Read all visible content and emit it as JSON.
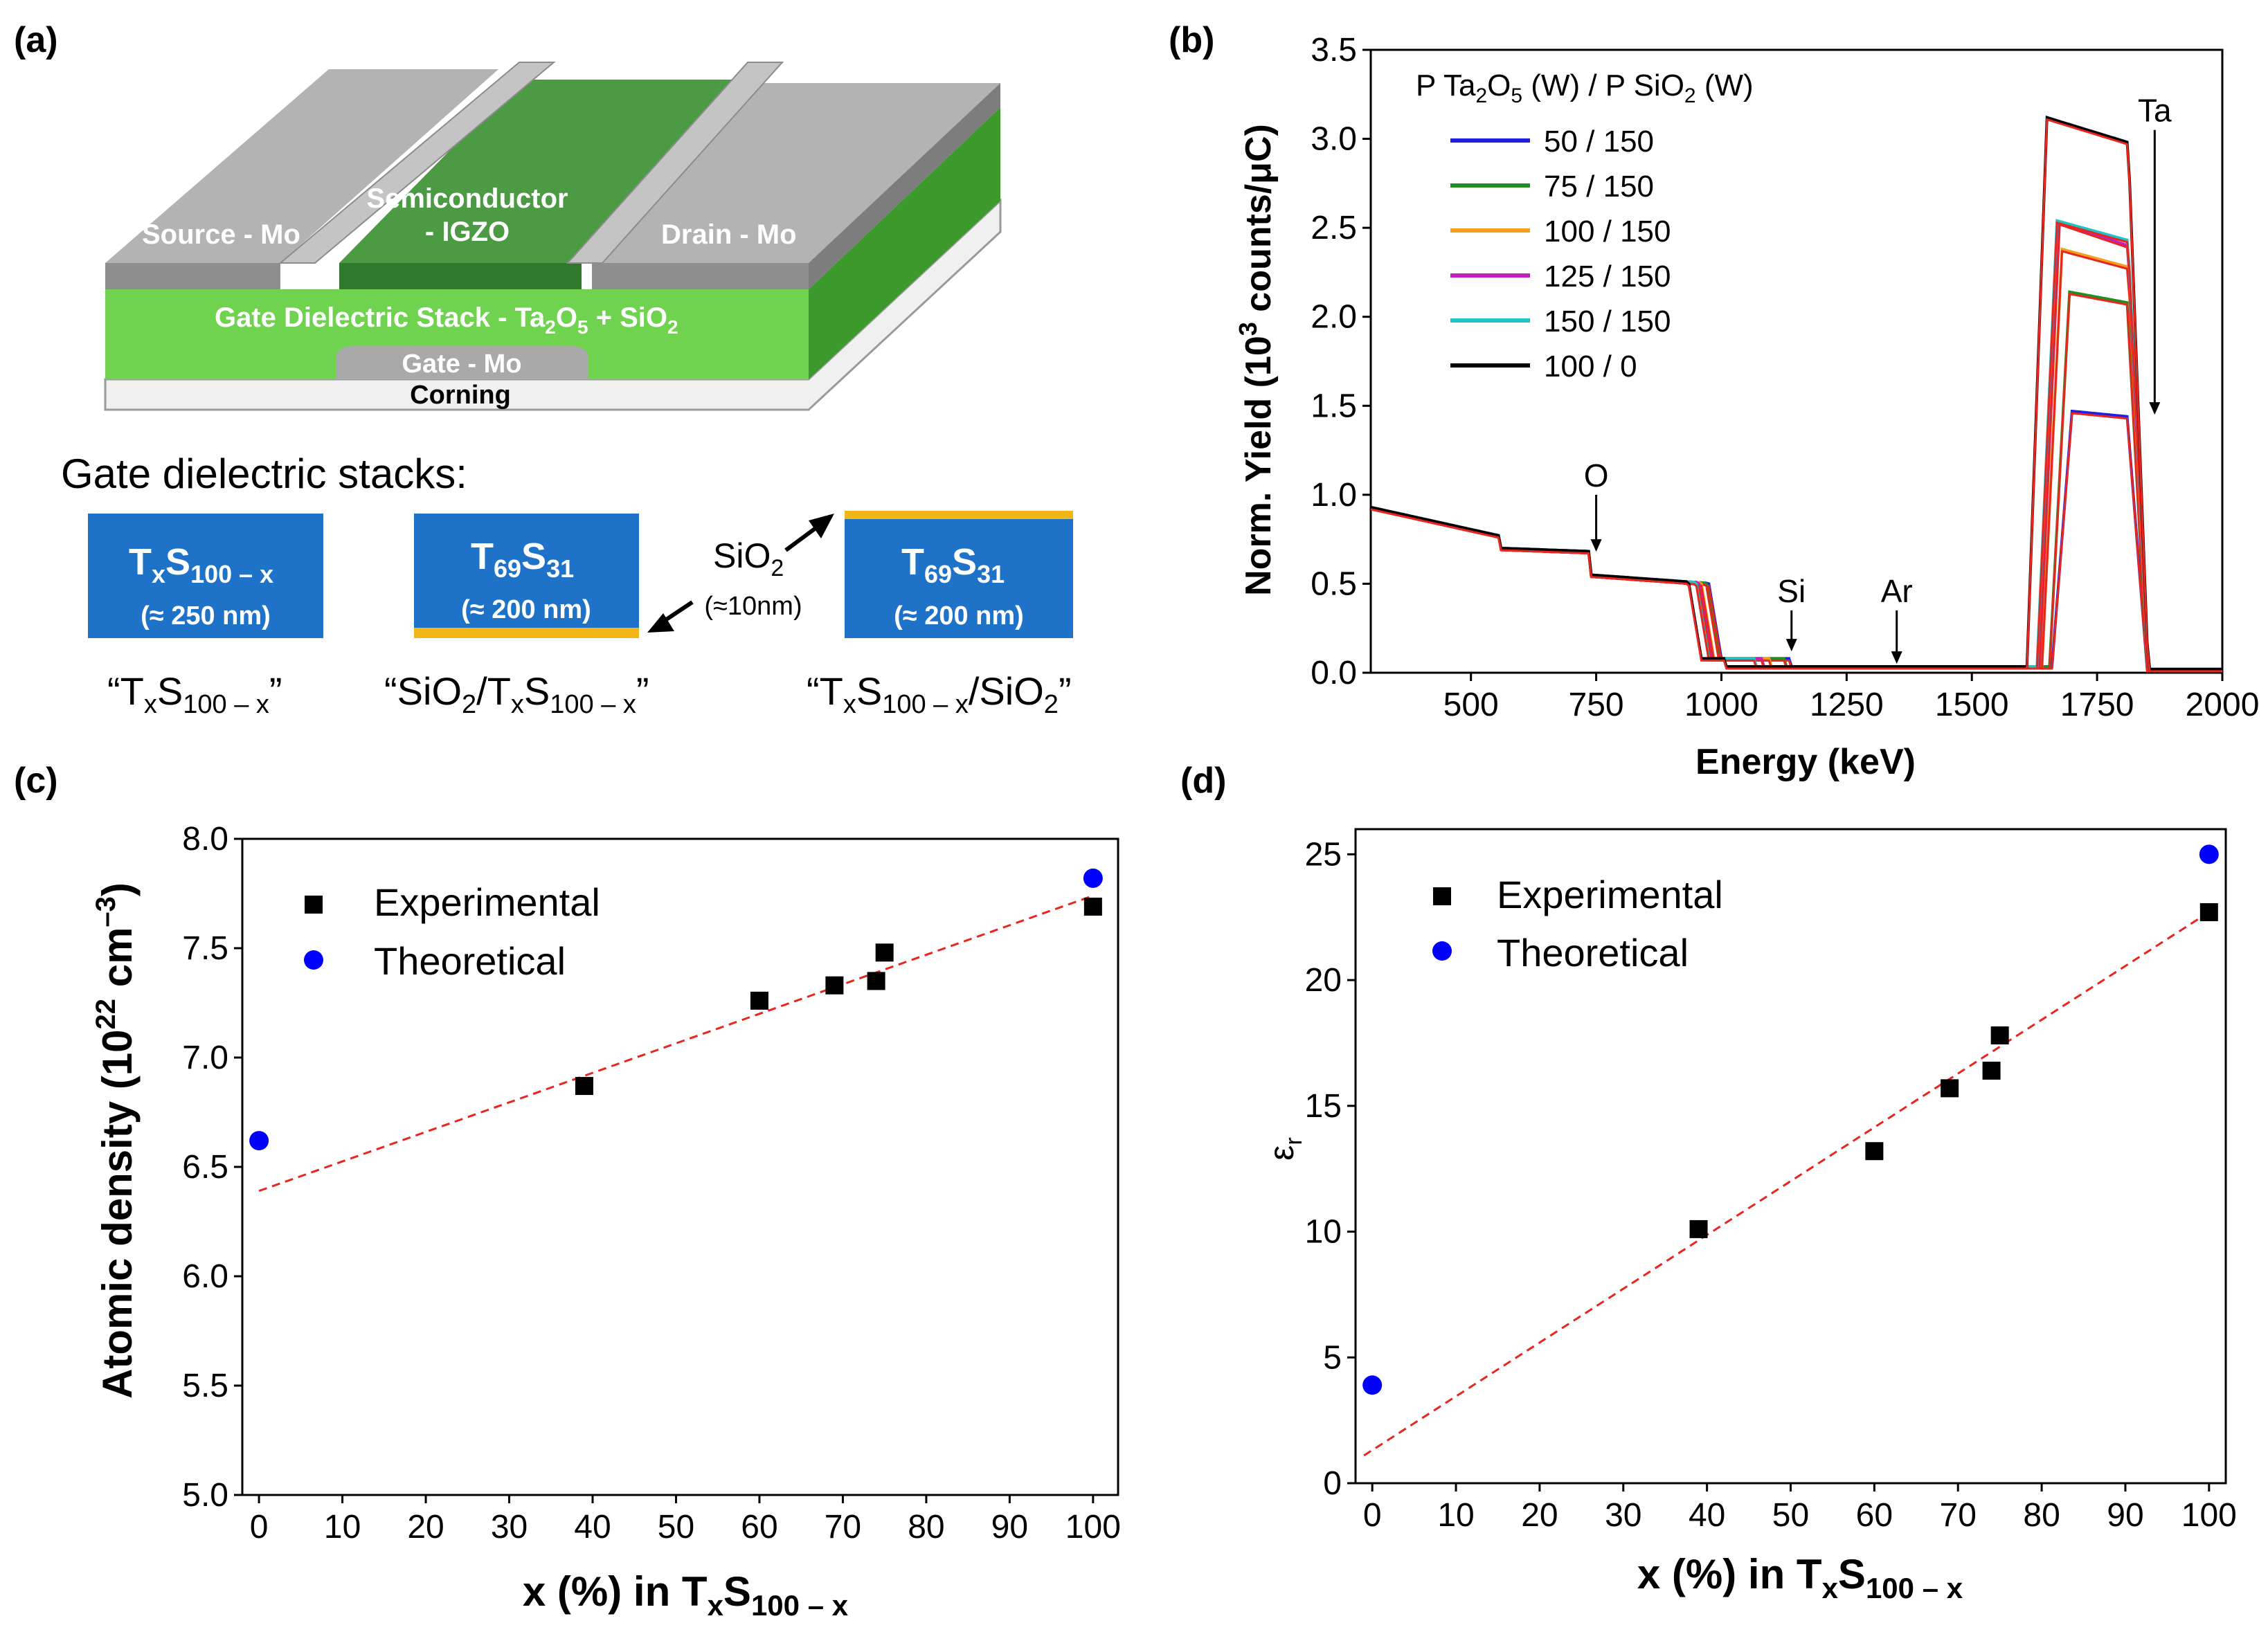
{
  "panel_labels": {
    "a": "(a)",
    "b": "(b)",
    "c": "(c)",
    "d": "(d)"
  },
  "colors": {
    "device_green": "#6fd34f",
    "device_dark_green": "#3c9a2d",
    "metal_gray": "#b3b3b3",
    "stack_blue": "#1e73c8",
    "sio2_yellow": "#f2b619",
    "exp_marker": "#000000",
    "theo_marker": "#0000ff",
    "fit_line": "#e8261f"
  },
  "panel_a": {
    "device": {
      "source": "Source - Mo",
      "semiconductor_line1": "Semiconductor",
      "semiconductor_line2": "- IGZO",
      "drain": "Drain - Mo",
      "dielectric": "Gate Dielectric Stack - Ta",
      "dielectric_sub1": "2",
      "dielectric_mid": "O",
      "dielectric_sub2": "5",
      "dielectric_tail": " + SiO",
      "dielectric_sub3": "2",
      "gate": "Gate - Mo",
      "substrate": "Corning"
    },
    "stacks_title": "Gate dielectric stacks:",
    "sio2_label": "SiO",
    "sio2_sub": "2",
    "sio2_thickness": "(≈10nm)",
    "stacks": [
      {
        "name_T": "T",
        "name_x": "x",
        "name_S": "S",
        "name_sub": "100 – x",
        "thickness": "(≈ 250 nm)",
        "caption_pre": "“",
        "caption_T": "T",
        "caption_x": "x",
        "caption_S": "S",
        "caption_sub": "100 – x",
        "caption_post": "”"
      },
      {
        "name_T": "T",
        "name_x": "69",
        "name_S": "S",
        "name_sub": "31",
        "thickness": "(≈ 200 nm)",
        "caption_pre": "“SiO",
        "caption_pre_sub": "2",
        "caption_mid": "/T",
        "caption_x": "x",
        "caption_S": "S",
        "caption_sub": "100 – x",
        "caption_post": "”"
      },
      {
        "name_T": "T",
        "name_x": "69",
        "name_S": "S",
        "name_sub": "31",
        "thickness": "(≈ 200 nm)",
        "caption_pre": "“T",
        "caption_x": "x",
        "caption_S": "S",
        "caption_sub": "100 – x",
        "caption_mid": "/SiO",
        "caption_mid_sub": "2",
        "caption_post": "”"
      }
    ]
  },
  "chart_data": [
    {
      "panel": "b",
      "type": "line",
      "xlabel": "Energy (keV)",
      "ylabel_pre": "Norm. Yield (10",
      "ylabel_sup": "3",
      "ylabel_post": " counts/μC)",
      "xlim": [
        300,
        2000
      ],
      "ylim": [
        0,
        3.5
      ],
      "xticks": [
        500,
        750,
        1000,
        1250,
        1500,
        1750,
        2000
      ],
      "yticks": [
        0.0,
        0.5,
        1.0,
        1.5,
        2.0,
        2.5,
        3.0,
        3.5
      ],
      "legend_title": "P Ta2O5 (W) / P SiO2 (W)",
      "legend_title_parts": [
        "P Ta",
        "2",
        "O",
        "5",
        " (W) / P SiO",
        "2",
        " (W)"
      ],
      "series": [
        {
          "name": "50 / 150",
          "color": "#1f1fe0",
          "o_edge": 975,
          "si_end": 1140,
          "ta_rise": 1700,
          "ta_fall": 1810,
          "plateau": [
            1.47,
            1.44
          ]
        },
        {
          "name": "75 / 150",
          "color": "#1f8f1f",
          "o_edge": 970,
          "si_end": 1130,
          "ta_rise": 1695,
          "ta_fall": 1810,
          "plateau": [
            2.14,
            2.08
          ]
        },
        {
          "name": "100 / 150",
          "color": "#f5a01a",
          "o_edge": 960,
          "si_end": 1100,
          "ta_rise": 1680,
          "ta_fall": 1812,
          "plateau": [
            2.38,
            2.28
          ]
        },
        {
          "name": "125 / 150",
          "color": "#c21fc2",
          "o_edge": 955,
          "si_end": 1085,
          "ta_rise": 1675,
          "ta_fall": 1812,
          "plateau": [
            2.53,
            2.4
          ]
        },
        {
          "name": "150 / 150",
          "color": "#1fc4c4",
          "o_edge": 950,
          "si_end": 1070,
          "ta_rise": 1670,
          "ta_fall": 1812,
          "plateau": [
            2.54,
            2.43
          ]
        },
        {
          "name": "100 / 0",
          "color": "#000000",
          "o_edge": 935,
          "si_end": 1010,
          "ta_rise": 1650,
          "ta_fall": 1812,
          "plateau": [
            3.12,
            2.98
          ]
        }
      ],
      "fit_color": "#e8261f",
      "annotations": [
        {
          "label": "O",
          "x": 750,
          "y_from": 1.0,
          "y_to": 0.68
        },
        {
          "label": "Si",
          "x": 1140,
          "y_from": 0.35,
          "y_to": 0.12
        },
        {
          "label": "Ar",
          "x": 1350,
          "y_from": 0.35,
          "y_to": 0.05
        },
        {
          "label": "Ta",
          "x": 1865,
          "y_from": 3.05,
          "y_to": 1.45
        }
      ]
    },
    {
      "panel": "c",
      "type": "scatter",
      "xlabel_pre": "x (%) in T",
      "xlabel_x": "x",
      "xlabel_S": "S",
      "xlabel_sub": "100 – x",
      "ylabel_pre": "Atomic density (10",
      "ylabel_sup1": "22",
      "ylabel_mid": " cm",
      "ylabel_sup2": "–3",
      "ylabel_post": ")",
      "xlim": [
        -2,
        103
      ],
      "ylim": [
        5.0,
        8.0
      ],
      "xticks": [
        0,
        10,
        20,
        30,
        40,
        50,
        60,
        70,
        80,
        90,
        100
      ],
      "yticks": [
        5.0,
        5.5,
        6.0,
        6.5,
        7.0,
        7.5,
        8.0
      ],
      "legend": [
        "Experimental",
        "Theoretical"
      ],
      "experimental": {
        "x": [
          39,
          60,
          69,
          74,
          75,
          100
        ],
        "y": [
          6.87,
          7.26,
          7.33,
          7.35,
          7.48,
          7.69
        ]
      },
      "theoretical": {
        "x": [
          0,
          100
        ],
        "y": [
          6.62,
          7.82
        ]
      },
      "fit": {
        "x": [
          0,
          100
        ],
        "y": [
          6.39,
          7.74
        ]
      }
    },
    {
      "panel": "d",
      "type": "scatter",
      "xlabel_pre": "x (%) in T",
      "xlabel_x": "x",
      "xlabel_S": "S",
      "xlabel_sub": "100 – x",
      "ylabel": "ε",
      "ylabel_sub": "r",
      "xlim": [
        -2,
        102
      ],
      "ylim": [
        0,
        26
      ],
      "xticks": [
        0,
        10,
        20,
        30,
        40,
        50,
        60,
        70,
        80,
        90,
        100
      ],
      "yticks": [
        0,
        5,
        10,
        15,
        20,
        25
      ],
      "legend": [
        "Experimental",
        "Theoretical"
      ],
      "experimental": {
        "x": [
          39,
          60,
          69,
          74,
          75,
          100
        ],
        "y": [
          10.1,
          13.2,
          15.7,
          16.4,
          17.8,
          22.7
        ]
      },
      "theoretical": {
        "x": [
          0,
          100
        ],
        "y": [
          3.9,
          25.0
        ]
      },
      "fit": {
        "x": [
          -1,
          100
        ],
        "y": [
          1.1,
          22.7
        ]
      }
    }
  ]
}
